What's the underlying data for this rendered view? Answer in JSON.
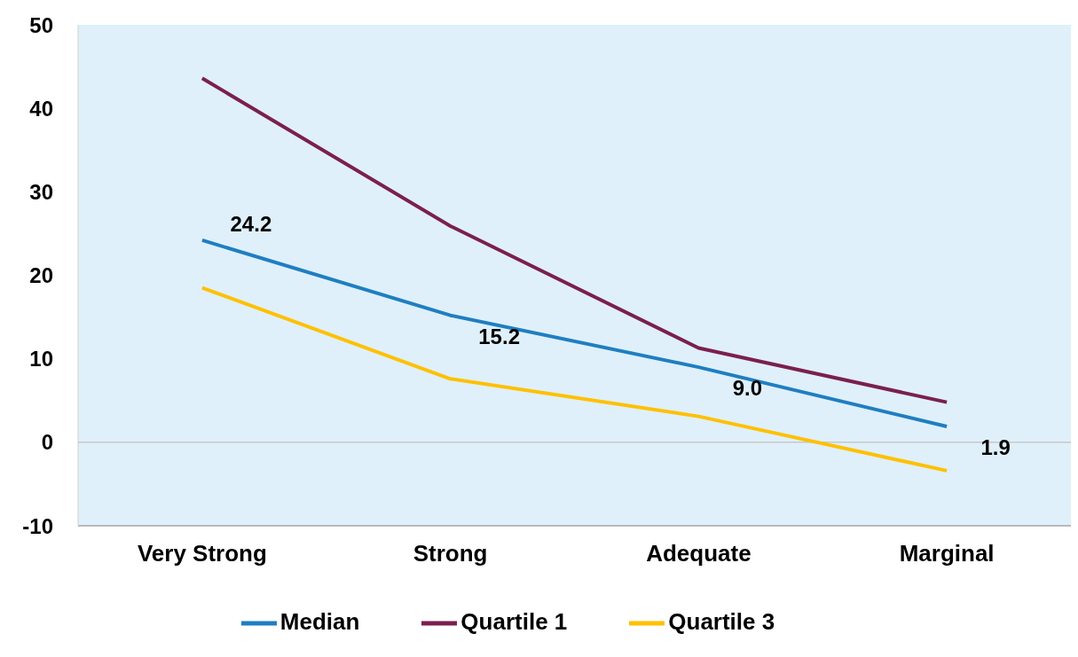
{
  "chart_data": {
    "type": "line",
    "categories": [
      "Very Strong",
      "Strong",
      "Adequate",
      "Marginal"
    ],
    "series": [
      {
        "name": "Median",
        "color": "#1f7ec1",
        "values": [
          24.2,
          15.2,
          9.0,
          1.9
        ],
        "value_labels": [
          "24.2",
          "15.2",
          "9.0",
          "1.9"
        ]
      },
      {
        "name": "Quartile 1",
        "color": "#7b1f4e",
        "values": [
          43.6,
          25.9,
          11.3,
          4.8
        ]
      },
      {
        "name": "Quartile 3",
        "color": "#ffc000",
        "values": [
          18.5,
          7.6,
          3.1,
          -3.4
        ]
      }
    ],
    "ylim": [
      -10,
      50
    ],
    "yticks": [
      -10,
      0,
      10,
      20,
      30,
      40,
      50
    ],
    "ref_lines": [
      {
        "axis": "y",
        "value": 0,
        "color": "#c8c8c8"
      }
    ],
    "grid": false,
    "legend": "bottom",
    "marker": "none",
    "line_style": "solid"
  }
}
